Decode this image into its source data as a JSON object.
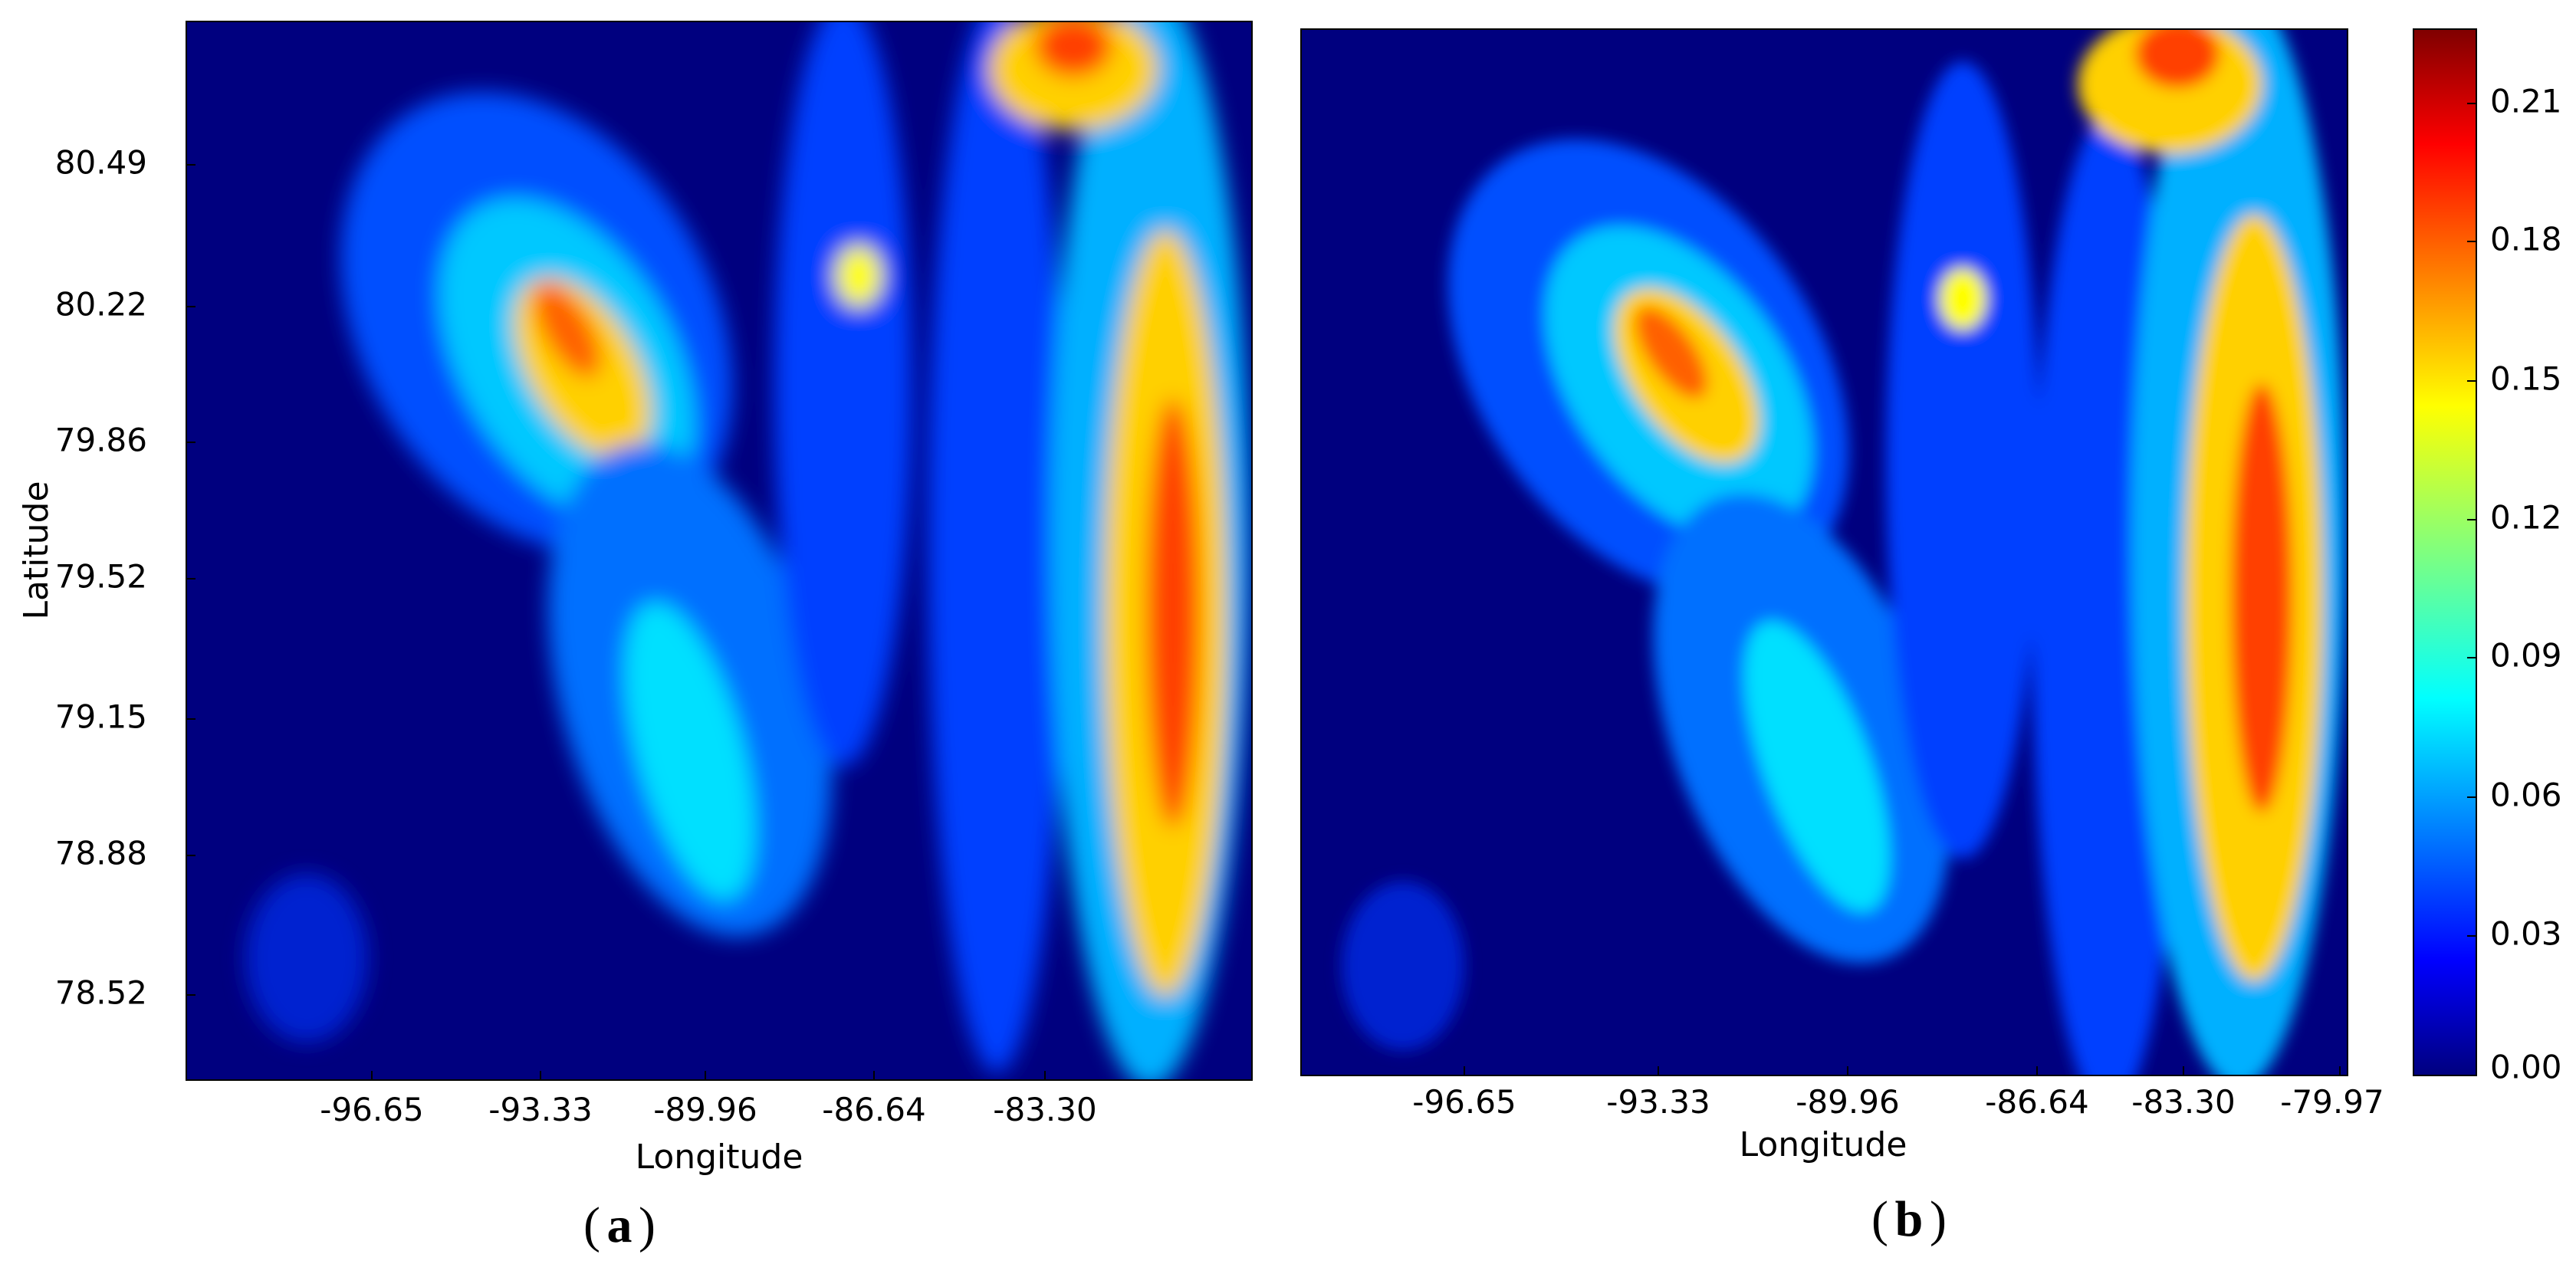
{
  "chart_data": [
    {
      "panel": "a",
      "type": "heatmap",
      "caption_letter": "a",
      "xlabel": "Longitude",
      "ylabel": "Latitude",
      "x_ticks": [
        "-96.65",
        "-93.33",
        "-89.96",
        "-86.64",
        "-83.30"
      ],
      "y_ticks": [
        "80.49",
        "80.22",
        "79.86",
        "79.52",
        "79.15",
        "78.88",
        "78.52"
      ],
      "colormap": "jet",
      "grid": false
    },
    {
      "panel": "b",
      "type": "heatmap",
      "caption_letter": "b",
      "xlabel": "Longitude",
      "ylabel": "",
      "x_ticks": [
        "-96.65",
        "-93.33",
        "-89.96",
        "-86.64",
        "-83.30",
        "-79.97"
      ],
      "y_ticks": [],
      "colormap": "jet",
      "grid": false,
      "colorbar": {
        "ticks": [
          "0.21",
          "0.18",
          "0.15",
          "0.12",
          "0.09",
          "0.06",
          "0.03",
          "0.00"
        ],
        "range": [
          0.0,
          0.225
        ]
      }
    }
  ],
  "colors": {
    "jet_low": "#00007f",
    "jet_mid": "#7fff7f",
    "jet_high": "#7f0000"
  }
}
